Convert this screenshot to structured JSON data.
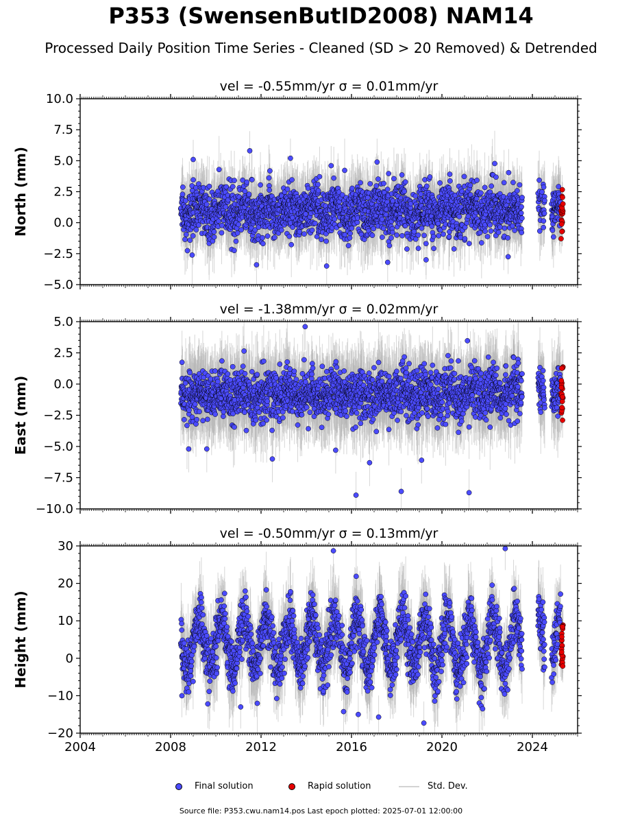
{
  "title": "P353 (SwensenButID2008) NAM14",
  "subtitle": "Processed Daily Position Time Series - Cleaned (SD > 20 Removed) & Detrended",
  "colors": {
    "final": "#4b4bff",
    "rapid": "#e60000",
    "stddev": "#b4b4b4"
  },
  "legend": {
    "final": "Final solution",
    "rapid": "Rapid solution",
    "stddev": "Std. Dev."
  },
  "footer": "Source file: P353.cwu.nam14.pos  Last epoch plotted: 2025-07-01 12:00:00",
  "chart_data": [
    {
      "type": "scatter",
      "title": "vel = -0.55mm/yr   σ = 0.01mm/yr",
      "ylabel": "North (mm)",
      "xlim": [
        2004,
        2026
      ],
      "ylim": [
        -5,
        10
      ],
      "yticks": [
        -5.0,
        -2.5,
        0.0,
        2.5,
        5.0,
        7.5,
        10.0
      ],
      "ytick_labels": [
        "−5.0",
        "−2.5",
        "0.0",
        "2.5",
        "5.0",
        "7.5",
        "10.0"
      ],
      "xticks": [
        2004,
        2008,
        2012,
        2016,
        2020,
        2024
      ],
      "xtick_labels": [],
      "data_span": [
        2008.45,
        2023.55
      ],
      "gap_span": [
        2024.25,
        2025.25
      ],
      "rapid_span": [
        2025.27,
        2025.36
      ],
      "center": 1.0,
      "spread": 1.0,
      "seasonal": 0.4,
      "sigma": 1.1,
      "outliers": [
        [
          2011.5,
          5.8
        ],
        [
          2011.8,
          -3.4
        ],
        [
          2014.9,
          -3.5
        ],
        [
          2015.1,
          4.6
        ],
        [
          2013.3,
          5.2
        ],
        [
          2009.0,
          5.1
        ],
        [
          2017.6,
          -3.2
        ],
        [
          2019.3,
          -3.0
        ]
      ],
      "series": [
        {
          "name": "Final solution"
        },
        {
          "name": "Rapid solution"
        }
      ]
    },
    {
      "type": "scatter",
      "title": "vel = -1.38mm/yr   σ = 0.02mm/yr",
      "ylabel": "East (mm)",
      "xlim": [
        2004,
        2026
      ],
      "ylim": [
        -10,
        5
      ],
      "yticks": [
        -10.0,
        -7.5,
        -5.0,
        -2.5,
        0.0,
        2.5,
        5.0
      ],
      "ytick_labels": [
        "−10.0",
        "−7.5",
        "−5.0",
        "−2.5",
        "0.0",
        "2.5",
        "5.0"
      ],
      "xticks": [
        2004,
        2008,
        2012,
        2016,
        2020,
        2024
      ],
      "xtick_labels": [],
      "data_span": [
        2008.45,
        2023.55
      ],
      "gap_span": [
        2024.25,
        2025.25
      ],
      "rapid_span": [
        2025.27,
        2025.36
      ],
      "center": -0.8,
      "spread": 1.0,
      "seasonal": 0.3,
      "sigma": 1.3,
      "outliers": [
        [
          2013.95,
          4.6
        ],
        [
          2016.2,
          -8.9
        ],
        [
          2018.2,
          -8.6
        ],
        [
          2021.2,
          -8.7
        ],
        [
          2012.5,
          -6.0
        ],
        [
          2016.8,
          -6.3
        ],
        [
          2019.1,
          -6.1
        ],
        [
          2008.8,
          -5.2
        ],
        [
          2009.6,
          -5.2
        ],
        [
          2015.3,
          -5.3
        ]
      ],
      "series": [
        {
          "name": "Final solution"
        },
        {
          "name": "Rapid solution"
        }
      ]
    },
    {
      "type": "scatter",
      "title": "vel = -0.50mm/yr   σ = 0.13mm/yr",
      "ylabel": "Height (mm)",
      "xlim": [
        2004,
        2026
      ],
      "ylim": [
        -20,
        30
      ],
      "yticks": [
        -20,
        -10,
        0,
        10,
        20,
        30
      ],
      "ytick_labels": [
        "−20",
        "−10",
        "0",
        "10",
        "20",
        "30"
      ],
      "xticks": [
        2004,
        2008,
        2012,
        2016,
        2020,
        2024
      ],
      "xtick_labels": [
        "2004",
        "2008",
        "2012",
        "2016",
        "2020",
        "2024"
      ],
      "data_span": [
        2008.45,
        2023.55
      ],
      "gap_span": [
        2024.25,
        2025.25
      ],
      "rapid_span": [
        2025.27,
        2025.36
      ],
      "center": 4.0,
      "spread": 3.5,
      "seasonal": 7.0,
      "sigma": 4.0,
      "outliers": [
        [
          2015.2,
          28.7
        ],
        [
          2022.8,
          29.3
        ],
        [
          2016.3,
          -15.0
        ],
        [
          2017.2,
          -15.7
        ],
        [
          2019.2,
          -17.3
        ],
        [
          2021.8,
          -13.5
        ],
        [
          2008.5,
          -10.0
        ],
        [
          2011.1,
          -13.0
        ]
      ],
      "series": [
        {
          "name": "Final solution"
        },
        {
          "name": "Rapid solution"
        }
      ]
    }
  ]
}
